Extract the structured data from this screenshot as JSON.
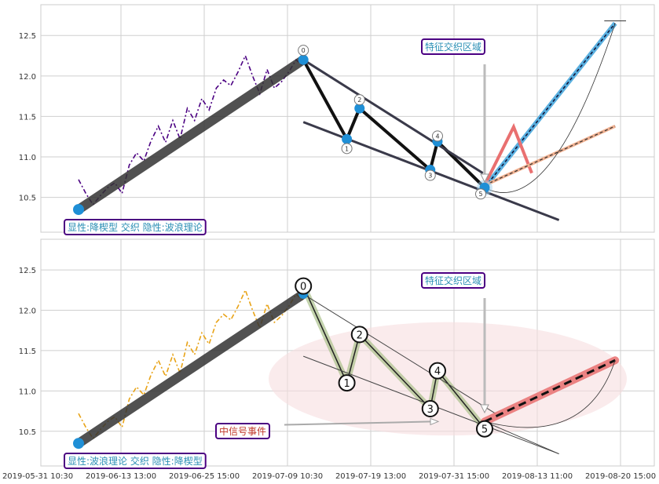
{
  "chart_data": [
    {
      "type": "line",
      "panel": "top",
      "ylim": [
        10.07,
        12.88
      ],
      "yticks": [
        "10.5",
        "11.0",
        "11.5",
        "12.0",
        "12.5"
      ],
      "grid": true,
      "series": [
        {
          "style": "dash-dot purple price",
          "points": [
            [
              0,
              10.72
            ],
            [
              4,
              10.55
            ],
            [
              8,
              10.41
            ],
            [
              12,
              10.52
            ],
            [
              16,
              10.62
            ],
            [
              20,
              10.68
            ],
            [
              24,
              10.55
            ],
            [
              28,
              10.9
            ],
            [
              32,
              11.05
            ],
            [
              36,
              10.95
            ],
            [
              40,
              11.2
            ],
            [
              44,
              11.38
            ],
            [
              48,
              11.18
            ],
            [
              52,
              11.45
            ],
            [
              56,
              11.22
            ],
            [
              60,
              11.6
            ],
            [
              64,
              11.45
            ],
            [
              68,
              11.72
            ],
            [
              72,
              11.58
            ],
            [
              76,
              11.85
            ],
            [
              80,
              11.95
            ],
            [
              84,
              11.88
            ],
            [
              88,
              12.05
            ],
            [
              92,
              12.25
            ],
            [
              96,
              12.0
            ],
            [
              100,
              11.78
            ],
            [
              104,
              12.08
            ],
            [
              108,
              11.85
            ],
            [
              112,
              11.93
            ],
            [
              116,
              12.05
            ],
            [
              120,
              12.2
            ],
            [
              124,
              12.12
            ]
          ]
        },
        {
          "style": "thick trend",
          "points": [
            [
              0,
              10.35
            ],
            [
              124,
              12.2
            ]
          ]
        }
      ],
      "wave_points": [
        {
          "label": "0",
          "x": 124,
          "y": 12.2
        },
        {
          "label": "1",
          "x": 148,
          "y": 11.22
        },
        {
          "label": "2",
          "x": 155,
          "y": 11.6
        },
        {
          "label": "3",
          "x": 194,
          "y": 10.84
        },
        {
          "label": "4",
          "x": 198,
          "y": 11.19
        },
        {
          "label": "5",
          "x": 224,
          "y": 10.62
        }
      ],
      "upper_line": [
        [
          124,
          12.2
        ],
        [
          223,
          10.8
        ]
      ],
      "lower_line": [
        [
          124,
          11.43
        ],
        [
          265,
          10.22
        ]
      ],
      "projection_up": [
        [
          224,
          10.62
        ],
        [
          296,
          12.65
        ]
      ],
      "projection_zigzag": [
        [
          224,
          10.65
        ],
        [
          240,
          11.37
        ],
        [
          250,
          10.8
        ]
      ],
      "projection_flat": [
        [
          224,
          10.65
        ],
        [
          296,
          11.38
        ]
      ],
      "labels": {
        "zone": "特征交织区域",
        "pattern": "显性:降楔型 交织 隐性:波浪理论"
      }
    },
    {
      "type": "line",
      "panel": "bottom",
      "ylim": [
        10.07,
        12.88
      ],
      "yticks": [
        "10.5",
        "11.0",
        "11.5",
        "12.0",
        "12.5"
      ],
      "grid": true,
      "series": [
        {
          "style": "dash-dot orange price",
          "points": [
            [
              0,
              10.72
            ],
            [
              4,
              10.55
            ],
            [
              8,
              10.41
            ],
            [
              12,
              10.52
            ],
            [
              16,
              10.62
            ],
            [
              20,
              10.68
            ],
            [
              24,
              10.55
            ],
            [
              28,
              10.9
            ],
            [
              32,
              11.05
            ],
            [
              36,
              10.95
            ],
            [
              40,
              11.2
            ],
            [
              44,
              11.38
            ],
            [
              48,
              11.18
            ],
            [
              52,
              11.45
            ],
            [
              56,
              11.22
            ],
            [
              60,
              11.6
            ],
            [
              64,
              11.45
            ],
            [
              68,
              11.72
            ],
            [
              72,
              11.58
            ],
            [
              76,
              11.85
            ],
            [
              80,
              11.95
            ],
            [
              84,
              11.88
            ],
            [
              88,
              12.05
            ],
            [
              92,
              12.25
            ],
            [
              96,
              12.0
            ],
            [
              100,
              11.78
            ],
            [
              104,
              12.08
            ],
            [
              108,
              11.85
            ],
            [
              112,
              11.93
            ],
            [
              116,
              12.05
            ],
            [
              120,
              12.2
            ],
            [
              124,
              12.12
            ]
          ]
        },
        {
          "style": "thick trend",
          "points": [
            [
              0,
              10.35
            ],
            [
              124,
              12.2
            ]
          ]
        }
      ],
      "wave_points": [
        {
          "label": "0",
          "x": 124,
          "y": 12.3
        },
        {
          "label": "1",
          "x": 148,
          "y": 11.1
        },
        {
          "label": "2",
          "x": 155,
          "y": 11.7
        },
        {
          "label": "3",
          "x": 194,
          "y": 10.78
        },
        {
          "label": "4",
          "x": 198,
          "y": 11.25
        },
        {
          "label": "5",
          "x": 224,
          "y": 10.53
        }
      ],
      "projection": [
        [
          224,
          10.62
        ],
        [
          296,
          11.38
        ]
      ],
      "labels": {
        "zone": "特征交织区域",
        "signal": "中信号事件",
        "pattern": "显性:波浪理论 交织 隐性:降楔型"
      }
    }
  ],
  "x_axis": {
    "ticks": [
      "2019-05-31 10:30",
      "2019-06-13 13:00",
      "2019-06-25 15:00",
      "2019-07-09 10:30",
      "2019-07-19 13:00",
      "2019-07-31 15:00",
      "2019-08-13 11:00",
      "2019-08-20 15:00"
    ]
  },
  "colors": {
    "blue": "#1f8fd6",
    "purple": "#4b0082",
    "orange": "#e8a317",
    "red": "#e97070",
    "teal": "#2b8fb5"
  }
}
